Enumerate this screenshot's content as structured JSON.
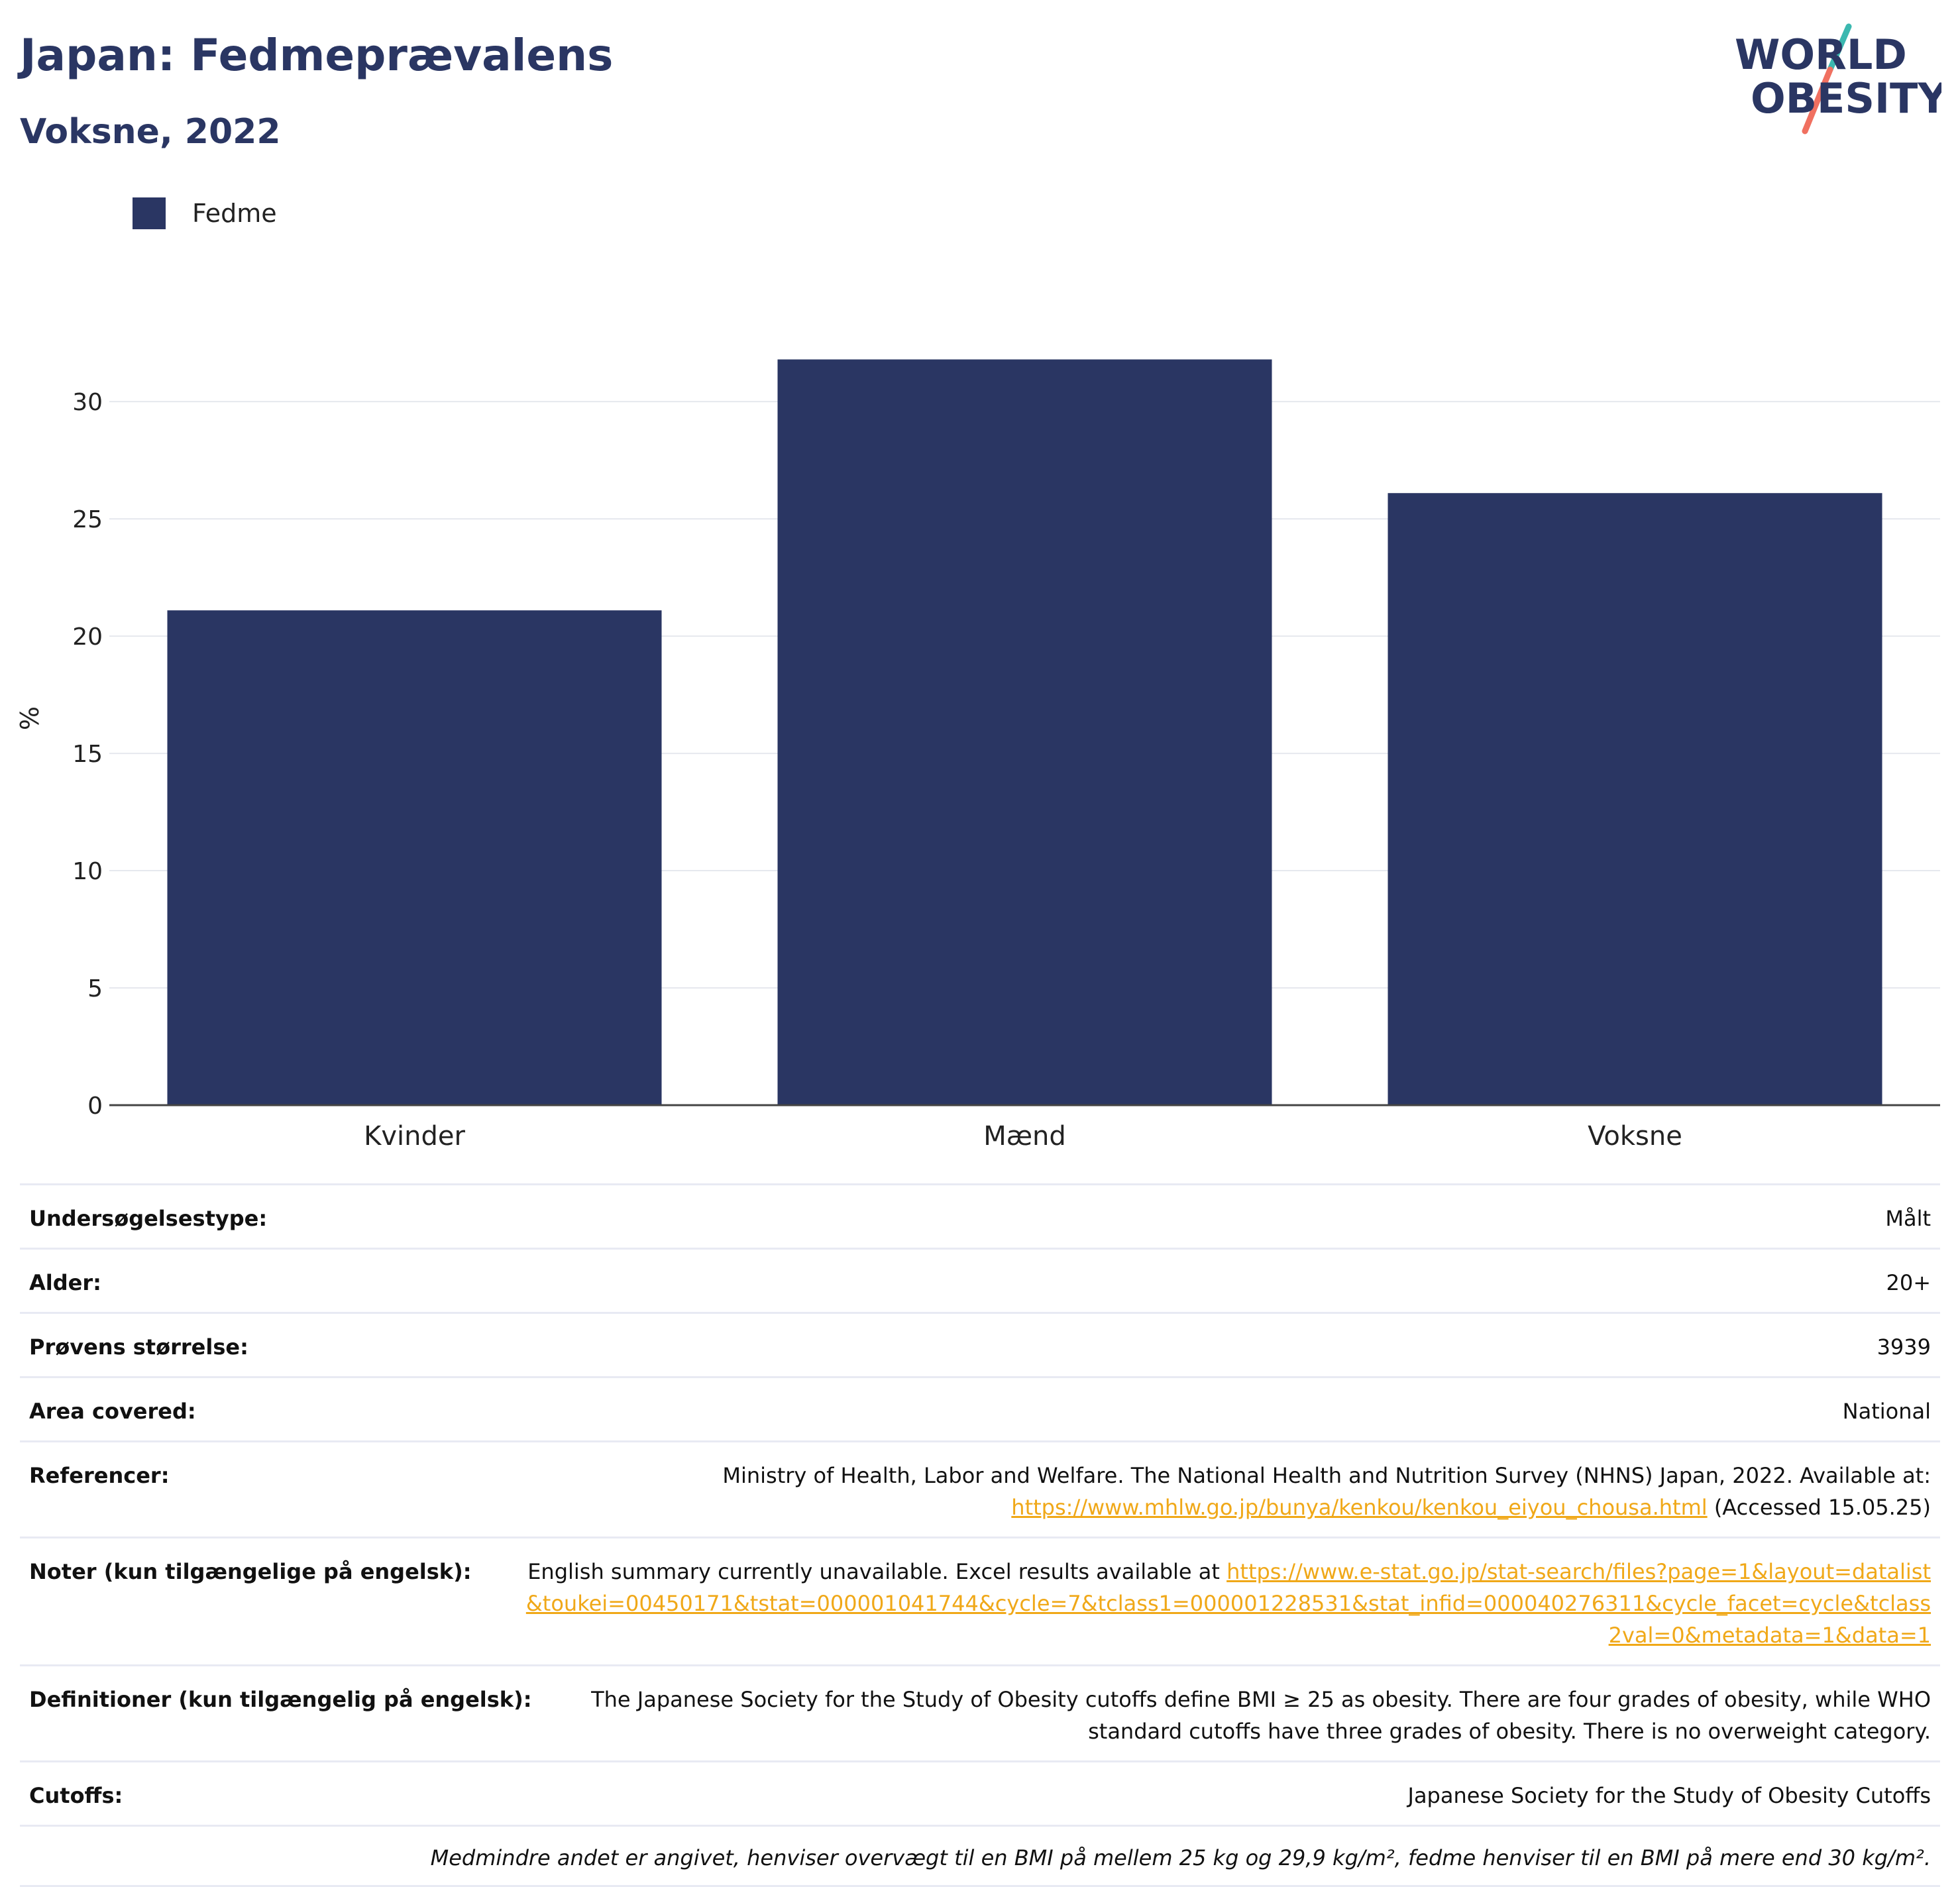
{
  "header": {
    "title": "Japan: Fedmeprævalens",
    "subtitle": "Voksne, 2022"
  },
  "logo": {
    "line1": "WORLD",
    "line2": "OBESITY",
    "colors": {
      "text": "#2a3663",
      "slash_teal": "#3bb8b0",
      "slash_coral": "#f07060"
    }
  },
  "legend": {
    "items": [
      {
        "label": "Fedme",
        "color": "#2a3663"
      }
    ]
  },
  "chart_data": {
    "type": "bar",
    "categories": [
      "Kvinder",
      "Mænd",
      "Voksne"
    ],
    "series": [
      {
        "name": "Fedme",
        "values": [
          21.1,
          31.8,
          26.1
        ],
        "color": "#2a3663"
      }
    ],
    "ylabel": "%",
    "ylim": [
      0,
      33
    ],
    "yticks": [
      0,
      5,
      10,
      15,
      20,
      25,
      30
    ],
    "grid": true,
    "legend_position": "top-left"
  },
  "info": {
    "rows": [
      {
        "key": "Undersøgelsestype:",
        "value": "Målt"
      },
      {
        "key": "Alder:",
        "value": "20+"
      },
      {
        "key": "Prøvens størrelse:",
        "value": "3939"
      },
      {
        "key": "Area covered:",
        "value": "National"
      }
    ],
    "references": {
      "key": "Referencer:",
      "text": "Ministry of Health, Labor and Welfare. The National Health and Nutrition Survey (NHNS) Japan, 2022. Available at:",
      "link": "https://www.mhlw.go.jp/bunya/kenkou/kenkou_eiyou_chousa.html",
      "suffix": "(Accessed 15.05.25)"
    },
    "notes": {
      "key": "Noter (kun tilgængelige på engelsk):",
      "text": "English summary currently unavailable. Excel results available at",
      "link": "https://www.e-stat.go.jp/stat-search/files?page=1&layout=datalist&toukei=00450171&tstat=000001041744&cycle=7&tclass1=000001228531&stat_infid=000040276311&cycle_facet=cycle&tclass2val=0&metadata=1&data=1"
    },
    "definitions": {
      "key": "Definitioner (kun tilgængelig på engelsk):",
      "value": "The Japanese Society for the Study of Obesity cutoffs define BMI ≥ 25 as obesity. There are four grades of obesity, while WHO standard cutoffs have three grades of obesity. There is no overweight category."
    },
    "cutoffs": {
      "key": "Cutoffs:",
      "value": "Japanese Society for the Study of Obesity Cutoffs"
    },
    "footnote": "Medmindre andet er angivet, henviser overvægt til en BMI på mellem 25 kg og 29,9 kg/m², fedme henviser til en BMI på mere end 30 kg/m²."
  }
}
